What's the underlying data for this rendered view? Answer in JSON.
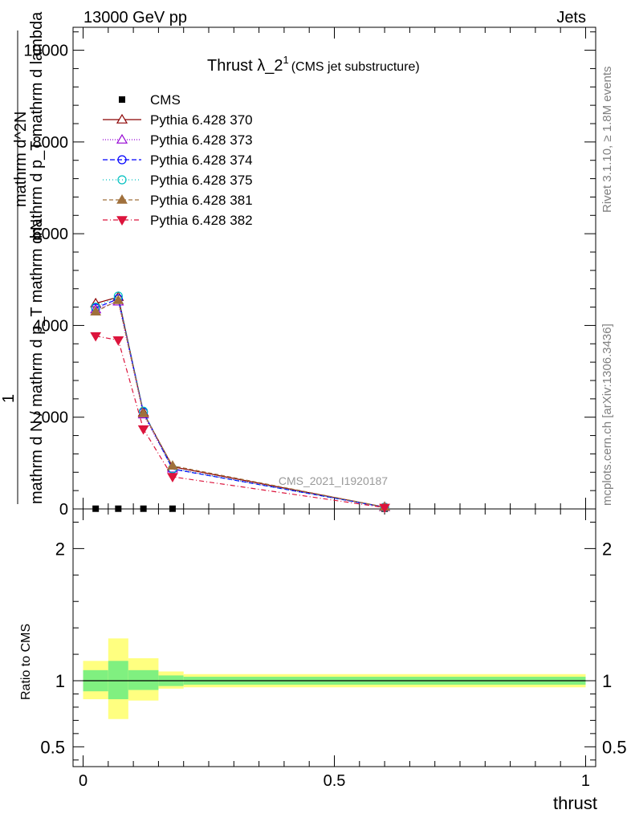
{
  "header": {
    "left": "13000 GeV pp",
    "right": "Jets"
  },
  "title": {
    "main": "Thrust λ_2",
    "sup": "1",
    "sub": "(CMS jet substructure)"
  },
  "side_labels": {
    "rivet": "Rivet 3.1.10, ≥ 1.8M events",
    "mcplots": "mcplots.cern.ch [arXiv:1306.3436]"
  },
  "watermark": "CMS_2021_I1920187",
  "ylabel": {
    "numerator": "1",
    "denominator": "mathrm d N / mathrm d p_T mathrm d N",
    "over": "mathrm d^2N",
    "under": "mathrm d p_T mathrm d lambda"
  },
  "ratio_ylabel": "Ratio to CMS",
  "xlabel": "thrust",
  "colors": {
    "cms": "#000000",
    "p370": "#8b0000",
    "p373": "#9400d3",
    "p374": "#0000ff",
    "p375": "#00c0c0",
    "p381": "#a0703c",
    "p382": "#dc143c",
    "band_inner": "#80f080",
    "band_outer": "#ffff80"
  },
  "chart_data": [
    {
      "type": "line",
      "xlim": [
        -0.02,
        1.02
      ],
      "ylim": [
        0,
        10500
      ],
      "y_ticks": [
        0,
        2000,
        4000,
        6000,
        8000,
        10000
      ],
      "y_tick_labels": [
        "0",
        "2000",
        "4000",
        "6000",
        "8000",
        "10000"
      ],
      "x_bins": [
        [
          0.0,
          0.05
        ],
        [
          0.05,
          0.09
        ],
        [
          0.09,
          0.15
        ],
        [
          0.15,
          0.2
        ],
        [
          0.2,
          1.0
        ]
      ],
      "x": [
        0.025,
        0.07,
        0.12,
        0.178,
        0.6
      ],
      "legend_position": "top-left",
      "series": [
        {
          "name": "CMS",
          "key": "cms",
          "marker": "square",
          "dash": "",
          "values": [
            5,
            5,
            5,
            5,
            5
          ]
        },
        {
          "name": "Pythia 6.428 370",
          "key": "p370",
          "marker": "triangle-open",
          "dash": "",
          "values": [
            4480,
            4620,
            2100,
            920,
            40
          ]
        },
        {
          "name": "Pythia 6.428 373",
          "key": "p373",
          "marker": "triangle-open",
          "dash": "1,2",
          "values": [
            4350,
            4520,
            2060,
            880,
            38
          ]
        },
        {
          "name": "Pythia 6.428 374",
          "key": "p374",
          "marker": "circle-open",
          "dash": "6,3",
          "values": [
            4380,
            4580,
            2110,
            870,
            38
          ]
        },
        {
          "name": "Pythia 6.428 375",
          "key": "p375",
          "marker": "circle-open",
          "dash": "1,3",
          "values": [
            4400,
            4640,
            2130,
            880,
            38
          ]
        },
        {
          "name": "Pythia 6.428 381",
          "key": "p381",
          "marker": "triangle-filled",
          "dash": "5,3",
          "values": [
            4300,
            4550,
            2080,
            940,
            42
          ]
        },
        {
          "name": "Pythia 6.428 382",
          "key": "p382",
          "marker": "triangle-down-filled",
          "dash": "6,3,1,3",
          "values": [
            3770,
            3680,
            1740,
            700,
            30
          ]
        }
      ]
    },
    {
      "type": "area",
      "xlim": [
        -0.02,
        1.02
      ],
      "ylim": [
        0.35,
        2.3
      ],
      "y_ticks": [
        0.5,
        1,
        2
      ],
      "y_tick_labels": [
        "0.5",
        "1",
        "2"
      ],
      "x_ticks": [
        0,
        0.5,
        1
      ],
      "x_tick_labels": [
        "0",
        "0.5",
        "1"
      ],
      "reference_line": 1,
      "bands": [
        {
          "x": [
            0.0,
            0.05
          ],
          "inner": [
            0.92,
            1.08
          ],
          "outer": [
            0.86,
            1.15
          ]
        },
        {
          "x": [
            0.05,
            0.09
          ],
          "inner": [
            0.86,
            1.15
          ],
          "outer": [
            0.71,
            1.32
          ]
        },
        {
          "x": [
            0.09,
            0.15
          ],
          "inner": [
            0.93,
            1.08
          ],
          "outer": [
            0.85,
            1.17
          ]
        },
        {
          "x": [
            0.15,
            0.2
          ],
          "inner": [
            0.96,
            1.04
          ],
          "outer": [
            0.94,
            1.07
          ]
        },
        {
          "x": [
            0.2,
            1.0
          ],
          "inner": [
            0.97,
            1.03
          ],
          "outer": [
            0.95,
            1.05
          ]
        }
      ]
    }
  ]
}
